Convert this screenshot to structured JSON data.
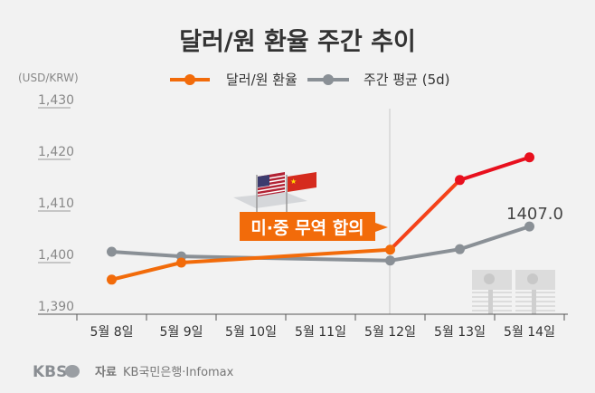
{
  "chart_data": {
    "type": "line",
    "title": "달러/원 환율 주간 추이",
    "ylabel": "(USD/KRW)",
    "ylim": [
      1390,
      1430
    ],
    "yticks": [
      "1,430",
      "1,420",
      "1,410",
      "1,400",
      "1,390"
    ],
    "ytick_values": [
      1430,
      1420,
      1410,
      1400,
      1390
    ],
    "categories": [
      "5월 8일",
      "5월 9일",
      "5월 10일",
      "5월 11일",
      "5월 12일",
      "5월 13일",
      "5월 14일"
    ],
    "series": [
      {
        "name": "달러/원 환율",
        "color": "#f26b0a",
        "end_color": "#e8101e",
        "values": [
          1396.7,
          1400.0,
          null,
          null,
          1402.5,
          1416.0,
          1420.4
        ]
      },
      {
        "name": "주간 평균 (5d)",
        "color": "#8a9096",
        "values": [
          1402.1,
          1401.2,
          null,
          null,
          1400.4,
          1402.6,
          1407.0
        ]
      }
    ],
    "data_labels": [
      {
        "series": 1,
        "category": "5월 14일",
        "text": "1407.0"
      }
    ],
    "annotation": {
      "text": "미·중 무역 합의",
      "category": "5월 12일",
      "color": "#f26b0a"
    },
    "legend_position": "top-center",
    "grid": false
  },
  "footer": {
    "logo": "KBS",
    "source_label": "자료",
    "source": "KB국민은행·Infomax"
  }
}
